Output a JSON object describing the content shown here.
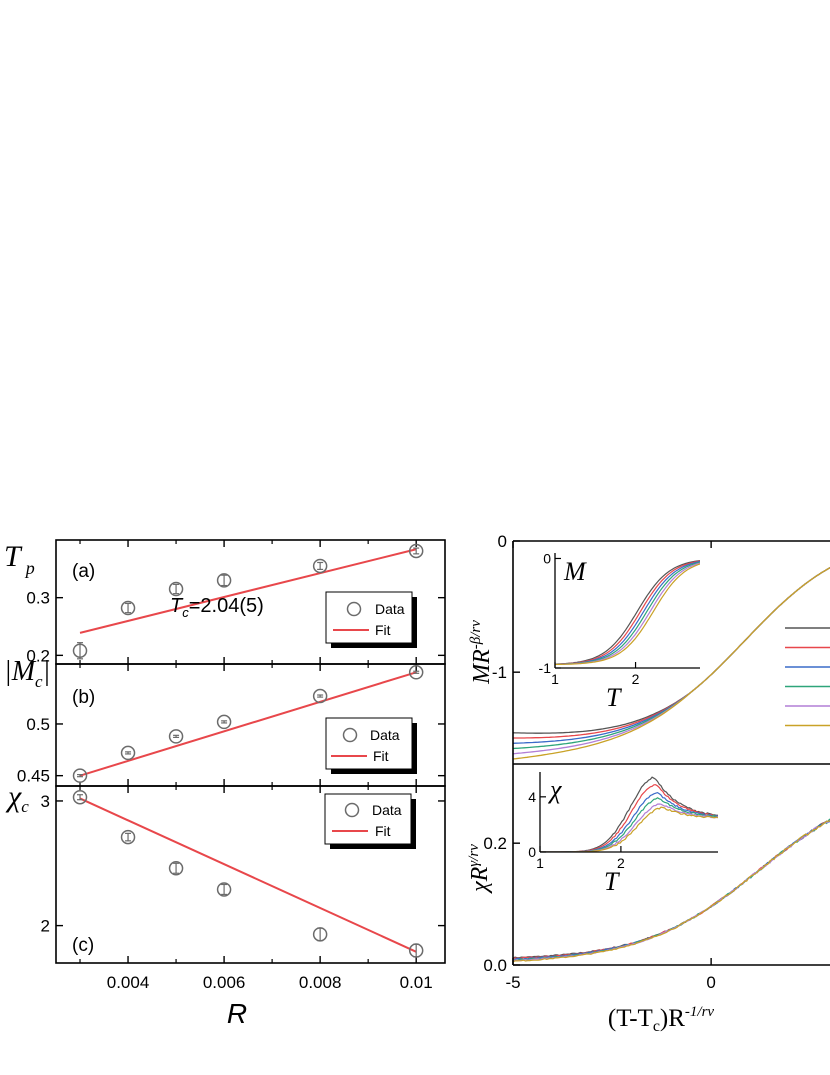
{
  "chart_data": [
    {
      "id": "a",
      "type": "scatter",
      "panel_label": "(a)",
      "ylabel": "T",
      "ylabel_sub": "p",
      "xlim": [
        0.0025,
        0.0106
      ],
      "ylim": [
        0.185,
        0.4
      ],
      "yticks": [
        0.2,
        0.3
      ],
      "annotation": "T",
      "annotation_sub": "c",
      "annotation_rest": "=2.04(5)",
      "legend": {
        "data": "Data",
        "fit": "Fit",
        "position": "lower-right"
      },
      "series": [
        {
          "name": "Data",
          "x": [
            0.003,
            0.004,
            0.005,
            0.006,
            0.008,
            0.01
          ],
          "y": [
            0.208,
            0.282,
            0.315,
            0.33,
            0.355,
            0.381
          ],
          "err": [
            0.014,
            0.008,
            0.008,
            0.009,
            0.006,
            0.005
          ]
        },
        {
          "name": "Fit",
          "x": [
            0.003,
            0.01
          ],
          "y": [
            0.239,
            0.384
          ]
        }
      ]
    },
    {
      "id": "b",
      "type": "scatter",
      "panel_label": "(b)",
      "ylabel": "|M",
      "ylabel_sub": "c",
      "ylabel_end": "|",
      "xlim": [
        0.0025,
        0.0106
      ],
      "ylim": [
        0.44,
        0.558
      ],
      "yticks": [
        0.45,
        0.5
      ],
      "legend": {
        "data": "Data",
        "fit": "Fit",
        "position": "lower-right"
      },
      "series": [
        {
          "name": "Data",
          "x": [
            0.003,
            0.004,
            0.005,
            0.006,
            0.008,
            0.01
          ],
          "y": [
            0.45,
            0.472,
            0.488,
            0.502,
            0.527,
            0.55
          ],
          "err": [
            0.001,
            0.001,
            0.001,
            0.001,
            0.001,
            0.001
          ]
        },
        {
          "name": "Fit",
          "x": [
            0.003,
            0.01
          ],
          "y": [
            0.45,
            0.55
          ]
        }
      ]
    },
    {
      "id": "c",
      "type": "scatter",
      "panel_label": "(c)",
      "ylabel": "χ",
      "ylabel_sub": "c",
      "xlabel": "R",
      "xlim": [
        0.0025,
        0.0106
      ],
      "ylim": [
        1.7,
        3.12
      ],
      "xticks": [
        0.004,
        0.006,
        0.008,
        0.01
      ],
      "xtick_labels": [
        "0.004",
        "0.006",
        "0.008",
        "0.01"
      ],
      "yticks": [
        2,
        3
      ],
      "legend": {
        "data": "Data",
        "fit": "Fit",
        "position": "upper-right"
      },
      "series": [
        {
          "name": "Data",
          "x": [
            0.003,
            0.004,
            0.005,
            0.006,
            0.008,
            0.01
          ],
          "y": [
            3.03,
            2.71,
            2.46,
            2.29,
            1.93,
            1.8
          ],
          "err": [
            0.02,
            0.03,
            0.04,
            0.04,
            0.05,
            0.05
          ]
        },
        {
          "name": "Fit",
          "x": [
            0.003,
            0.01
          ],
          "y": [
            3.02,
            1.79
          ]
        }
      ]
    },
    {
      "id": "d",
      "type": "line",
      "ylabel": "MR",
      "ylabel_sup": "-β/rν",
      "xlim": [
        -5,
        3
      ],
      "ylim": [
        -1.7,
        0
      ],
      "yticks": [
        -1,
        0
      ],
      "curve_colors": [
        "#555555",
        "#e8474b",
        "#3a6bc9",
        "#2ea57a",
        "#b27fd6",
        "#c9a227"
      ],
      "main": {
        "x0": 0.85,
        "lo": -1.58,
        "hi": 0.06,
        "w": 1.3,
        "left_spread": -0.1
      },
      "inset": {
        "ylabel": "M",
        "xlabel": "T",
        "xlim": [
          1,
          2.8
        ],
        "ylim": [
          -1,
          0.05
        ],
        "xticks": [
          1,
          2
        ],
        "yticks": [
          -1,
          0
        ],
        "centers": [
          2.02,
          2.06,
          2.1,
          2.14,
          2.18,
          2.22
        ],
        "width": 0.2
      }
    },
    {
      "id": "e",
      "type": "line",
      "ylabel": "χR",
      "ylabel_sup": "γ/rν",
      "xlabel": "(T-T",
      "xlabel_sub": "c",
      "xlabel_end": ")R",
      "xlabel_sup": "-1/rν",
      "xlim": [
        -5,
        3
      ],
      "ylim": [
        0,
        0.33
      ],
      "xticks": [
        -5,
        0
      ],
      "yticks": [
        0,
        0.2
      ],
      "xtick_labels": [
        "-5",
        "0"
      ],
      "ytick_labels": [
        "0.0",
        "0.2"
      ],
      "curve_colors": [
        "#555555",
        "#e8474b",
        "#3a6bc9",
        "#2ea57a",
        "#b27fd6",
        "#c9a227"
      ],
      "main": {
        "x0": 1.2,
        "top": 0.305,
        "w": 1.45,
        "floor": 0.005,
        "left_spread": 0.003
      },
      "inset": {
        "ylabel": "χ",
        "xlabel": "T",
        "xlim": [
          1,
          3.2
        ],
        "ylim": [
          0,
          5.8
        ],
        "xticks": [
          1,
          2
        ],
        "yticks": [
          0,
          4
        ],
        "peaks": [
          5.4,
          4.9,
          4.3,
          3.9,
          3.5,
          3.2
        ],
        "centers": [
          2.42,
          2.44,
          2.46,
          2.48,
          2.5,
          2.52
        ]
      }
    }
  ]
}
